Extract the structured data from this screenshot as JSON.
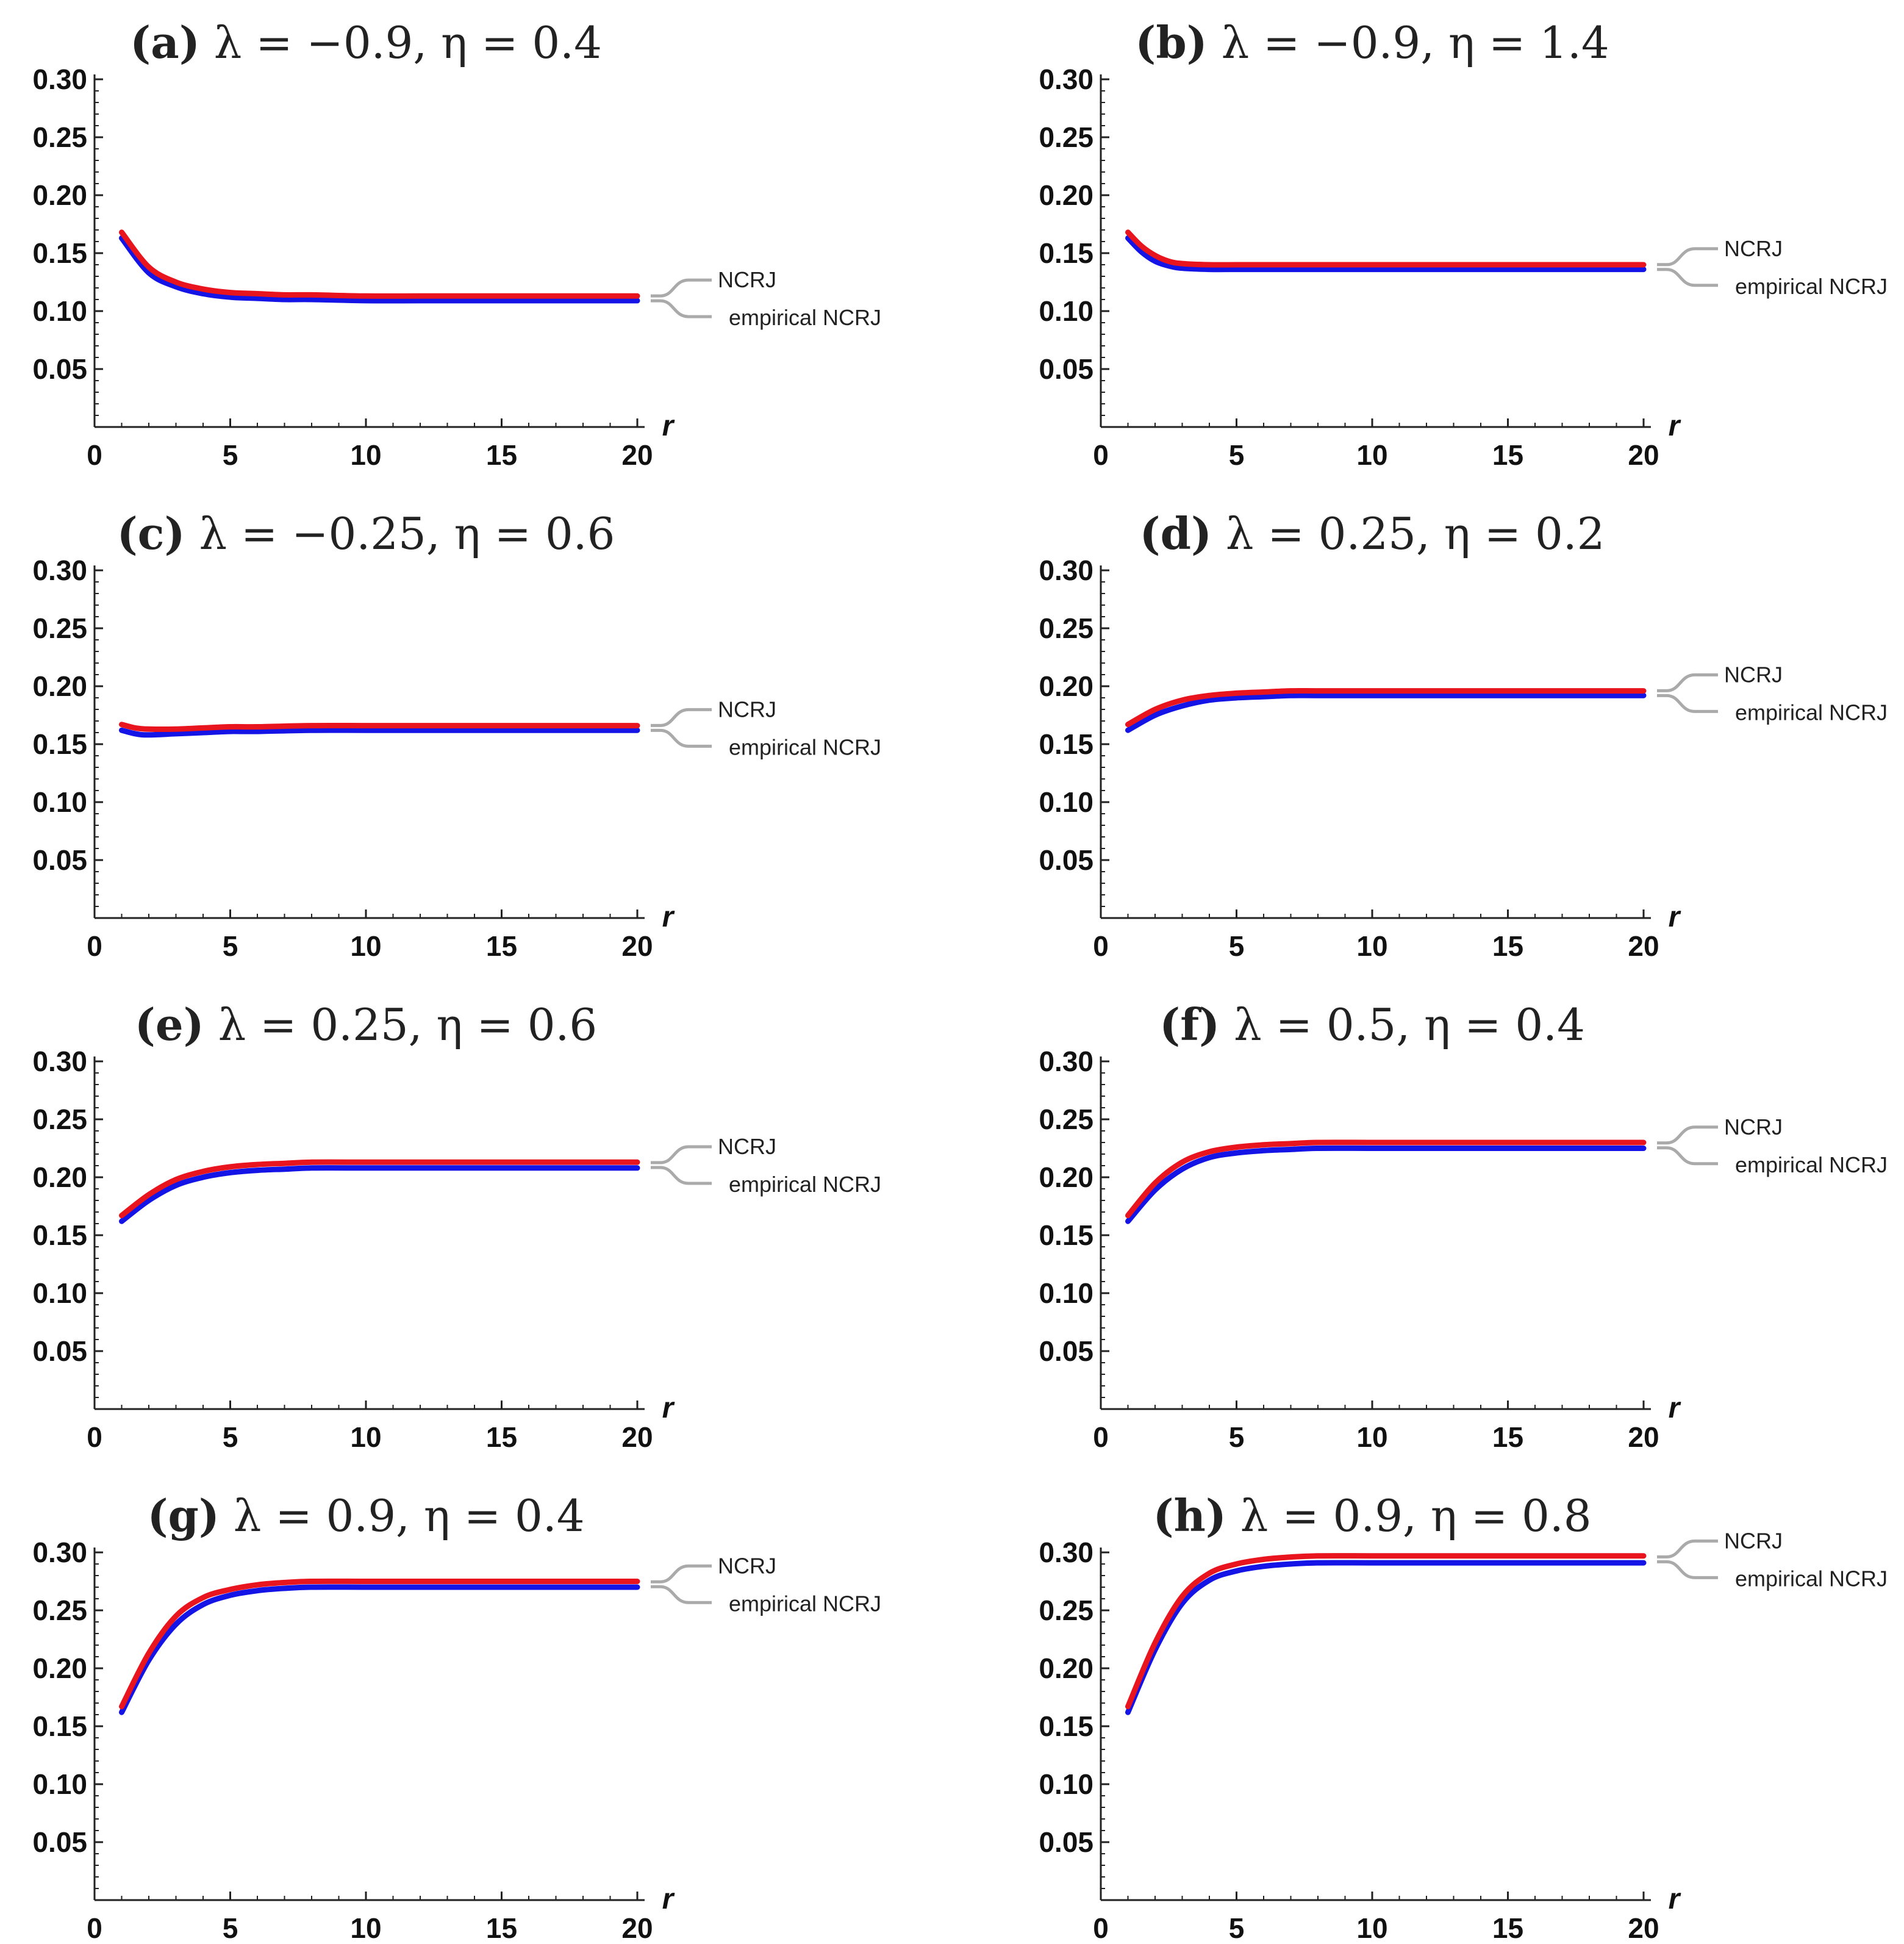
{
  "figure": {
    "colors": {
      "ncrj": "#e8141e",
      "empirical": "#1414e6",
      "axis": "#222222",
      "legend_bracket": "#aaaaaa"
    }
  },
  "chart_data": [
    {
      "id": "a",
      "type": "line",
      "title_tag": "(a)",
      "title_rest": "λ = −0.9, η = 0.4",
      "xlabel": "r",
      "ylabel": "",
      "xlim": [
        0,
        20
      ],
      "ylim": [
        0,
        0.3
      ],
      "x_ticks": [
        "0",
        "5",
        "10",
        "15",
        "20"
      ],
      "y_ticks": [
        "0.05",
        "0.10",
        "0.15",
        "0.20",
        "0.25",
        "0.30"
      ],
      "legend": [
        "NCRJ",
        "empirical NCRJ"
      ],
      "legend_position": "right",
      "x": [
        1,
        2,
        3,
        4,
        5,
        6,
        7,
        8,
        10,
        12,
        14,
        16,
        18,
        20
      ],
      "series": [
        {
          "name": "NCRJ",
          "color": "#e8141e",
          "values": [
            0.168,
            0.138,
            0.125,
            0.119,
            0.116,
            0.115,
            0.114,
            0.114,
            0.113,
            0.113,
            0.113,
            0.113,
            0.113,
            0.113
          ]
        },
        {
          "name": "empirical NCRJ",
          "color": "#1414e6",
          "values": [
            0.163,
            0.133,
            0.121,
            0.115,
            0.112,
            0.111,
            0.11,
            0.11,
            0.109,
            0.109,
            0.109,
            0.109,
            0.109,
            0.109
          ]
        }
      ]
    },
    {
      "id": "b",
      "type": "line",
      "title_tag": "(b)",
      "title_rest": "λ = −0.9, η = 1.4",
      "xlabel": "r",
      "ylabel": "",
      "xlim": [
        0,
        20
      ],
      "ylim": [
        0,
        0.3
      ],
      "x_ticks": [
        "0",
        "5",
        "10",
        "15",
        "20"
      ],
      "y_ticks": [
        "0.05",
        "0.10",
        "0.15",
        "0.20",
        "0.25",
        "0.30"
      ],
      "legend": [
        "NCRJ",
        "empirical NCRJ"
      ],
      "legend_position": "right",
      "x": [
        1,
        1.5,
        2,
        2.5,
        3,
        4,
        5,
        6,
        8,
        10,
        12,
        14,
        16,
        18,
        20
      ],
      "series": [
        {
          "name": "NCRJ",
          "color": "#e8141e",
          "values": [
            0.168,
            0.156,
            0.148,
            0.143,
            0.141,
            0.14,
            0.14,
            0.14,
            0.14,
            0.14,
            0.14,
            0.14,
            0.14,
            0.14,
            0.14
          ]
        },
        {
          "name": "empirical NCRJ",
          "color": "#1414e6",
          "values": [
            0.163,
            0.151,
            0.143,
            0.139,
            0.137,
            0.136,
            0.136,
            0.136,
            0.136,
            0.136,
            0.136,
            0.136,
            0.136,
            0.136,
            0.136
          ]
        }
      ]
    },
    {
      "id": "c",
      "type": "line",
      "title_tag": "(c)",
      "title_rest": "λ = −0.25, η = 0.6",
      "xlabel": "r",
      "ylabel": "",
      "xlim": [
        0,
        20
      ],
      "ylim": [
        0,
        0.3
      ],
      "x_ticks": [
        "0",
        "5",
        "10",
        "15",
        "20"
      ],
      "y_ticks": [
        "0.05",
        "0.10",
        "0.15",
        "0.20",
        "0.25",
        "0.30"
      ],
      "legend": [
        "NCRJ",
        "empirical NCRJ"
      ],
      "legend_position": "right",
      "x": [
        1,
        1.5,
        2,
        3,
        4,
        5,
        6,
        8,
        10,
        12,
        14,
        16,
        18,
        20
      ],
      "series": [
        {
          "name": "NCRJ",
          "color": "#e8141e",
          "values": [
            0.167,
            0.164,
            0.163,
            0.163,
            0.164,
            0.165,
            0.165,
            0.166,
            0.166,
            0.166,
            0.166,
            0.166,
            0.166,
            0.166
          ]
        },
        {
          "name": "empirical NCRJ",
          "color": "#1414e6",
          "values": [
            0.162,
            0.159,
            0.158,
            0.159,
            0.16,
            0.161,
            0.161,
            0.162,
            0.162,
            0.162,
            0.162,
            0.162,
            0.162,
            0.162
          ]
        }
      ]
    },
    {
      "id": "d",
      "type": "line",
      "title_tag": "(d)",
      "title_rest": "λ = 0.25, η = 0.2",
      "xlabel": "r",
      "ylabel": "",
      "xlim": [
        0,
        20
      ],
      "ylim": [
        0,
        0.3
      ],
      "x_ticks": [
        "0",
        "5",
        "10",
        "15",
        "20"
      ],
      "y_ticks": [
        "0.05",
        "0.10",
        "0.15",
        "0.20",
        "0.25",
        "0.30"
      ],
      "legend": [
        "NCRJ",
        "empirical NCRJ"
      ],
      "legend_position": "right",
      "x": [
        1,
        2,
        3,
        4,
        5,
        6,
        7,
        8,
        10,
        12,
        14,
        16,
        18,
        20
      ],
      "series": [
        {
          "name": "NCRJ",
          "color": "#e8141e",
          "values": [
            0.167,
            0.18,
            0.188,
            0.192,
            0.194,
            0.195,
            0.196,
            0.196,
            0.196,
            0.196,
            0.196,
            0.196,
            0.196,
            0.196
          ]
        },
        {
          "name": "empirical NCRJ",
          "color": "#1414e6",
          "values": [
            0.162,
            0.175,
            0.183,
            0.188,
            0.19,
            0.191,
            0.192,
            0.192,
            0.192,
            0.192,
            0.192,
            0.192,
            0.192,
            0.192
          ]
        }
      ]
    },
    {
      "id": "e",
      "type": "line",
      "title_tag": "(e)",
      "title_rest": "λ = 0.25, η = 0.6",
      "xlabel": "r",
      "ylabel": "",
      "xlim": [
        0,
        20
      ],
      "ylim": [
        0,
        0.3
      ],
      "x_ticks": [
        "0",
        "5",
        "10",
        "15",
        "20"
      ],
      "y_ticks": [
        "0.05",
        "0.10",
        "0.15",
        "0.20",
        "0.25",
        "0.30"
      ],
      "legend": [
        "NCRJ",
        "empirical NCRJ"
      ],
      "legend_position": "right",
      "x": [
        1,
        2,
        3,
        4,
        5,
        6,
        7,
        8,
        10,
        12,
        14,
        16,
        18,
        20
      ],
      "series": [
        {
          "name": "NCRJ",
          "color": "#e8141e",
          "values": [
            0.167,
            0.185,
            0.198,
            0.205,
            0.209,
            0.211,
            0.212,
            0.213,
            0.213,
            0.213,
            0.213,
            0.213,
            0.213,
            0.213
          ]
        },
        {
          "name": "empirical NCRJ",
          "color": "#1414e6",
          "values": [
            0.162,
            0.18,
            0.193,
            0.2,
            0.204,
            0.206,
            0.207,
            0.208,
            0.208,
            0.208,
            0.208,
            0.208,
            0.208,
            0.208
          ]
        }
      ]
    },
    {
      "id": "f",
      "type": "line",
      "title_tag": "(f)",
      "title_rest": "λ = 0.5, η = 0.4",
      "xlabel": "r",
      "ylabel": "",
      "xlim": [
        0,
        20
      ],
      "ylim": [
        0,
        0.3
      ],
      "x_ticks": [
        "0",
        "5",
        "10",
        "15",
        "20"
      ],
      "y_ticks": [
        "0.05",
        "0.10",
        "0.15",
        "0.20",
        "0.25",
        "0.30"
      ],
      "legend": [
        "NCRJ",
        "empirical NCRJ"
      ],
      "legend_position": "right",
      "x": [
        1,
        2,
        3,
        4,
        5,
        6,
        7,
        8,
        10,
        12,
        14,
        16,
        18,
        20
      ],
      "series": [
        {
          "name": "NCRJ",
          "color": "#e8141e",
          "values": [
            0.167,
            0.195,
            0.213,
            0.222,
            0.226,
            0.228,
            0.229,
            0.23,
            0.23,
            0.23,
            0.23,
            0.23,
            0.23,
            0.23
          ]
        },
        {
          "name": "empirical NCRJ",
          "color": "#1414e6",
          "values": [
            0.162,
            0.189,
            0.207,
            0.217,
            0.221,
            0.223,
            0.224,
            0.225,
            0.225,
            0.225,
            0.225,
            0.225,
            0.225,
            0.225
          ]
        }
      ]
    },
    {
      "id": "g",
      "type": "line",
      "title_tag": "(g)",
      "title_rest": "λ = 0.9, η = 0.4",
      "xlabel": "r",
      "ylabel": "",
      "xlim": [
        0,
        20
      ],
      "ylim": [
        0,
        0.3
      ],
      "x_ticks": [
        "0",
        "5",
        "10",
        "15",
        "20"
      ],
      "y_ticks": [
        "0.05",
        "0.10",
        "0.15",
        "0.20",
        "0.25",
        "0.30"
      ],
      "legend": [
        "NCRJ",
        "empirical NCRJ"
      ],
      "legend_position": "right",
      "x": [
        1,
        2,
        3,
        4,
        5,
        6,
        7,
        8,
        10,
        12,
        14,
        16,
        18,
        20
      ],
      "series": [
        {
          "name": "NCRJ",
          "color": "#e8141e",
          "values": [
            0.167,
            0.213,
            0.245,
            0.261,
            0.268,
            0.272,
            0.274,
            0.275,
            0.275,
            0.275,
            0.275,
            0.275,
            0.275,
            0.275
          ]
        },
        {
          "name": "empirical NCRJ",
          "color": "#1414e6",
          "values": [
            0.162,
            0.207,
            0.238,
            0.255,
            0.263,
            0.267,
            0.269,
            0.27,
            0.27,
            0.27,
            0.27,
            0.27,
            0.27,
            0.27
          ]
        }
      ]
    },
    {
      "id": "h",
      "type": "line",
      "title_tag": "(h)",
      "title_rest": "λ = 0.9, η = 0.8",
      "xlabel": "r",
      "ylabel": "",
      "xlim": [
        0,
        20
      ],
      "ylim": [
        0,
        0.3
      ],
      "x_ticks": [
        "0",
        "5",
        "10",
        "15",
        "20"
      ],
      "y_ticks": [
        "0.05",
        "0.10",
        "0.15",
        "0.20",
        "0.25",
        "0.30"
      ],
      "legend": [
        "NCRJ",
        "empirical NCRJ"
      ],
      "legend_position": "right",
      "x": [
        1,
        2,
        3,
        4,
        5,
        6,
        7,
        8,
        10,
        12,
        14,
        16,
        18,
        20
      ],
      "series": [
        {
          "name": "NCRJ",
          "color": "#e8141e",
          "values": [
            0.167,
            0.222,
            0.262,
            0.282,
            0.29,
            0.294,
            0.296,
            0.297,
            0.297,
            0.297,
            0.297,
            0.297,
            0.297,
            0.297
          ]
        },
        {
          "name": "empirical NCRJ",
          "color": "#1414e6",
          "values": [
            0.162,
            0.216,
            0.256,
            0.276,
            0.284,
            0.288,
            0.29,
            0.291,
            0.291,
            0.291,
            0.291,
            0.291,
            0.291,
            0.291
          ]
        }
      ]
    }
  ]
}
